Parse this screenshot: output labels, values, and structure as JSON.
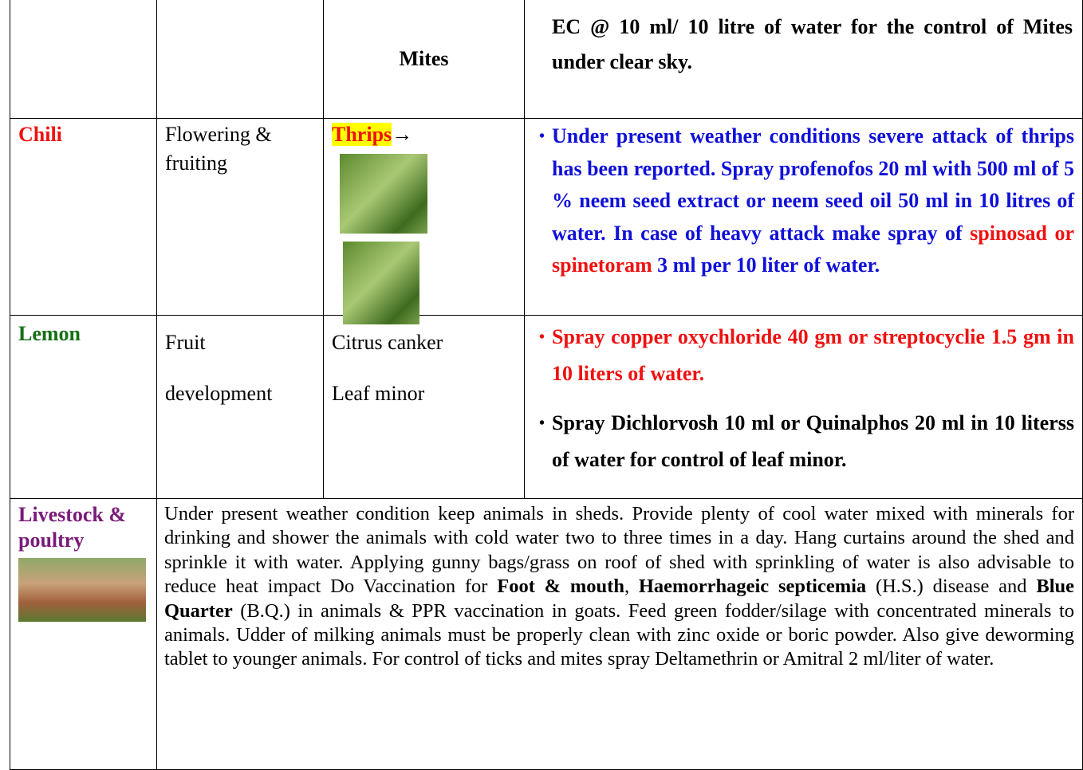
{
  "rows": [
    {
      "pest": "Mites",
      "advice": "EC @ 10 ml/ 10 litre of water for the control of Mites under clear sky."
    },
    {
      "crop": "Chili",
      "stage": "Flowering & fruiting",
      "pest": "Thrips",
      "pest_arrow": "→",
      "advice": [
        "Under present weather conditions severe attack of thrips has been reported. Spray profenofos 20 ml with 500 ml of 5 % neem seed extract or neem seed oil 50  ml in 10 litres of water. In case of heavy attack make spray of ",
        "spinosad or spinetoram",
        " 3 ml per 10 liter of water."
      ]
    },
    {
      "crop": "Lemon",
      "stage": [
        "Fruit",
        "development"
      ],
      "pests": [
        "Citrus canker",
        "Leaf minor"
      ],
      "advice": [
        "Spray copper oxychloride 40 gm or streptocyclie 1.5 gm in 10 liters of water.",
        "Spray Dichlorvosh 10 ml or Quinalphos 20 ml in 10 literss of water for control of leaf minor."
      ]
    },
    {
      "crop": "Livestock & poultry",
      "advice": [
        "Under present weather condition keep animals in sheds. Provide plenty of cool water mixed with minerals for drinking and shower the animals with cold water two to three times in a day. Hang curtains around the shed and sprinkle it with water. Applying gunny bags/grass on roof of shed with sprinkling of water is also advisable to reduce heat impact Do Vaccination for ",
        "Foot & mouth",
        ", ",
        "Haemorrhageic septicemia",
        " (H.S.) disease and ",
        "Blue Quarter",
        " (B.Q.) in animals & PPR vaccination in goats. Feed green fodder/silage with concentrated minerals to animals. Udder of milking animals must be properly clean with zinc oxide or boric powder. Also give deworming tablet to younger animals. For control of ticks and mites spray Deltamethrin or Amitral 2 ml/liter of water."
      ]
    }
  ]
}
